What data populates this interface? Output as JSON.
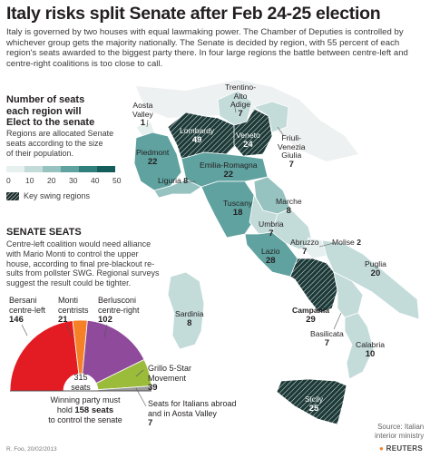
{
  "title": "Italy risks split Senate after Feb 24-25 election",
  "intro": "Italy is governed by two houses with equal lawmaking power. The Chamber of Deputies is controlled by whichever group gets the majority nationally. The Senate is decided by region, with 55 percent of each region's seats awarded to the biggest party there. In four large regions the battle between centre-left and centre-right coalitions is too close to call.",
  "legend": {
    "heading_line1": "Number of seats",
    "heading_line2": "each region will",
    "heading_line3": "Elect to the senate",
    "note_line1": "Regions are allocated Senate",
    "note_line2": "seats according to the size",
    "note_line3": "of their population.",
    "ticks": [
      "0",
      "10",
      "20",
      "30",
      "40",
      "50"
    ],
    "swing_label": "Key swing regions",
    "colors": [
      "#e6f0ef",
      "#c3dbd9",
      "#96c2bf",
      "#5fa29f",
      "#2f7f7c",
      "#155d5a"
    ]
  },
  "senate": {
    "heading": "SENATE SEATS",
    "text_line1": "Centre-left coalition would need alliance",
    "text_line2": "with Mario Monti to control the upper",
    "text_line3": "house, according to final pre-blackout re-",
    "text_line4": "sults from pollster SWG. Regional surveys",
    "text_line5": "suggest the result could be tighter.",
    "total": "315",
    "total_label": "seats",
    "majority_line1": "Winning party must",
    "majority_prefix": "hold",
    "majority_value": "158 seats",
    "majority_line3": "to control the senate"
  },
  "chart_data": {
    "type": "pie",
    "title": "SENATE SEATS",
    "total": 315,
    "series": [
      {
        "name": "Bersani centre-left",
        "value": 146,
        "color": "#e31b23"
      },
      {
        "name": "Monti centrists",
        "value": 21,
        "color": "#f58025"
      },
      {
        "name": "Berlusconi centre-right",
        "value": 102,
        "color": "#8f4a9b"
      },
      {
        "name": "Grillo 5-Star Movement",
        "value": 39,
        "color": "#9bbb3b"
      },
      {
        "name": "Seats for Italians abroad and in Aosta Valley",
        "value": 7,
        "color": "#9a9a9a"
      }
    ]
  },
  "pie_labels": {
    "bersani_1": "Bersani",
    "bersani_2": "centre-left",
    "bersani_v": "146",
    "monti_1": "Monti",
    "monti_2": "centrists",
    "monti_v": "21",
    "berlusconi_1": "Berlusconi",
    "berlusconi_2": "centre-right",
    "berlusconi_v": "102",
    "grillo_1": "Grillo 5-Star",
    "grillo_2": "Movement",
    "grillo_v": "39",
    "abroad_1": "Seats for Italians abroad",
    "abroad_2": "and in Aosta Valley",
    "abroad_v": "7"
  },
  "regions": {
    "aosta": {
      "name1": "Aosta",
      "name2": "Valley",
      "seats": "1"
    },
    "trentino": {
      "name1": "Trentino-",
      "name2": "Alto",
      "name3": "Adige",
      "seats": "7"
    },
    "lombardy": {
      "name": "Lombardy",
      "seats": "49"
    },
    "veneto": {
      "name": "Veneto",
      "seats": "24"
    },
    "friuli": {
      "name1": "Friuli-",
      "name2": "Venezia",
      "name3": "Giulia",
      "seats": "7"
    },
    "piedmont": {
      "name": "Piedmont",
      "seats": "22"
    },
    "emilia": {
      "name": "Emilia-Romagna",
      "seats": "22"
    },
    "liguria": {
      "name": "Liguria",
      "seats": "8"
    },
    "tuscany": {
      "name": "Tuscany",
      "seats": "18"
    },
    "marche": {
      "name": "Marche",
      "seats": "8"
    },
    "umbria": {
      "name": "Umbria",
      "seats": "7"
    },
    "lazio": {
      "name": "Lazio",
      "seats": "28"
    },
    "abruzzo": {
      "name": "Abruzzo",
      "seats": "7"
    },
    "molise": {
      "name": "Molise",
      "seats": "2"
    },
    "puglia": {
      "name": "Puglia",
      "seats": "20"
    },
    "campania": {
      "name": "Campania",
      "seats": "29"
    },
    "basilicata": {
      "name": "Basilicata",
      "seats": "7"
    },
    "calabria": {
      "name": "Calabria",
      "seats": "10"
    },
    "sardinia": {
      "name": "Sardinia",
      "seats": "8"
    },
    "sicily": {
      "name": "Sicily",
      "seats": "25"
    }
  },
  "source_line1": "Source: Italian",
  "source_line2": "interior ministry",
  "credit": "R. Foo, 20/02/2013",
  "brand": "REUTERS"
}
